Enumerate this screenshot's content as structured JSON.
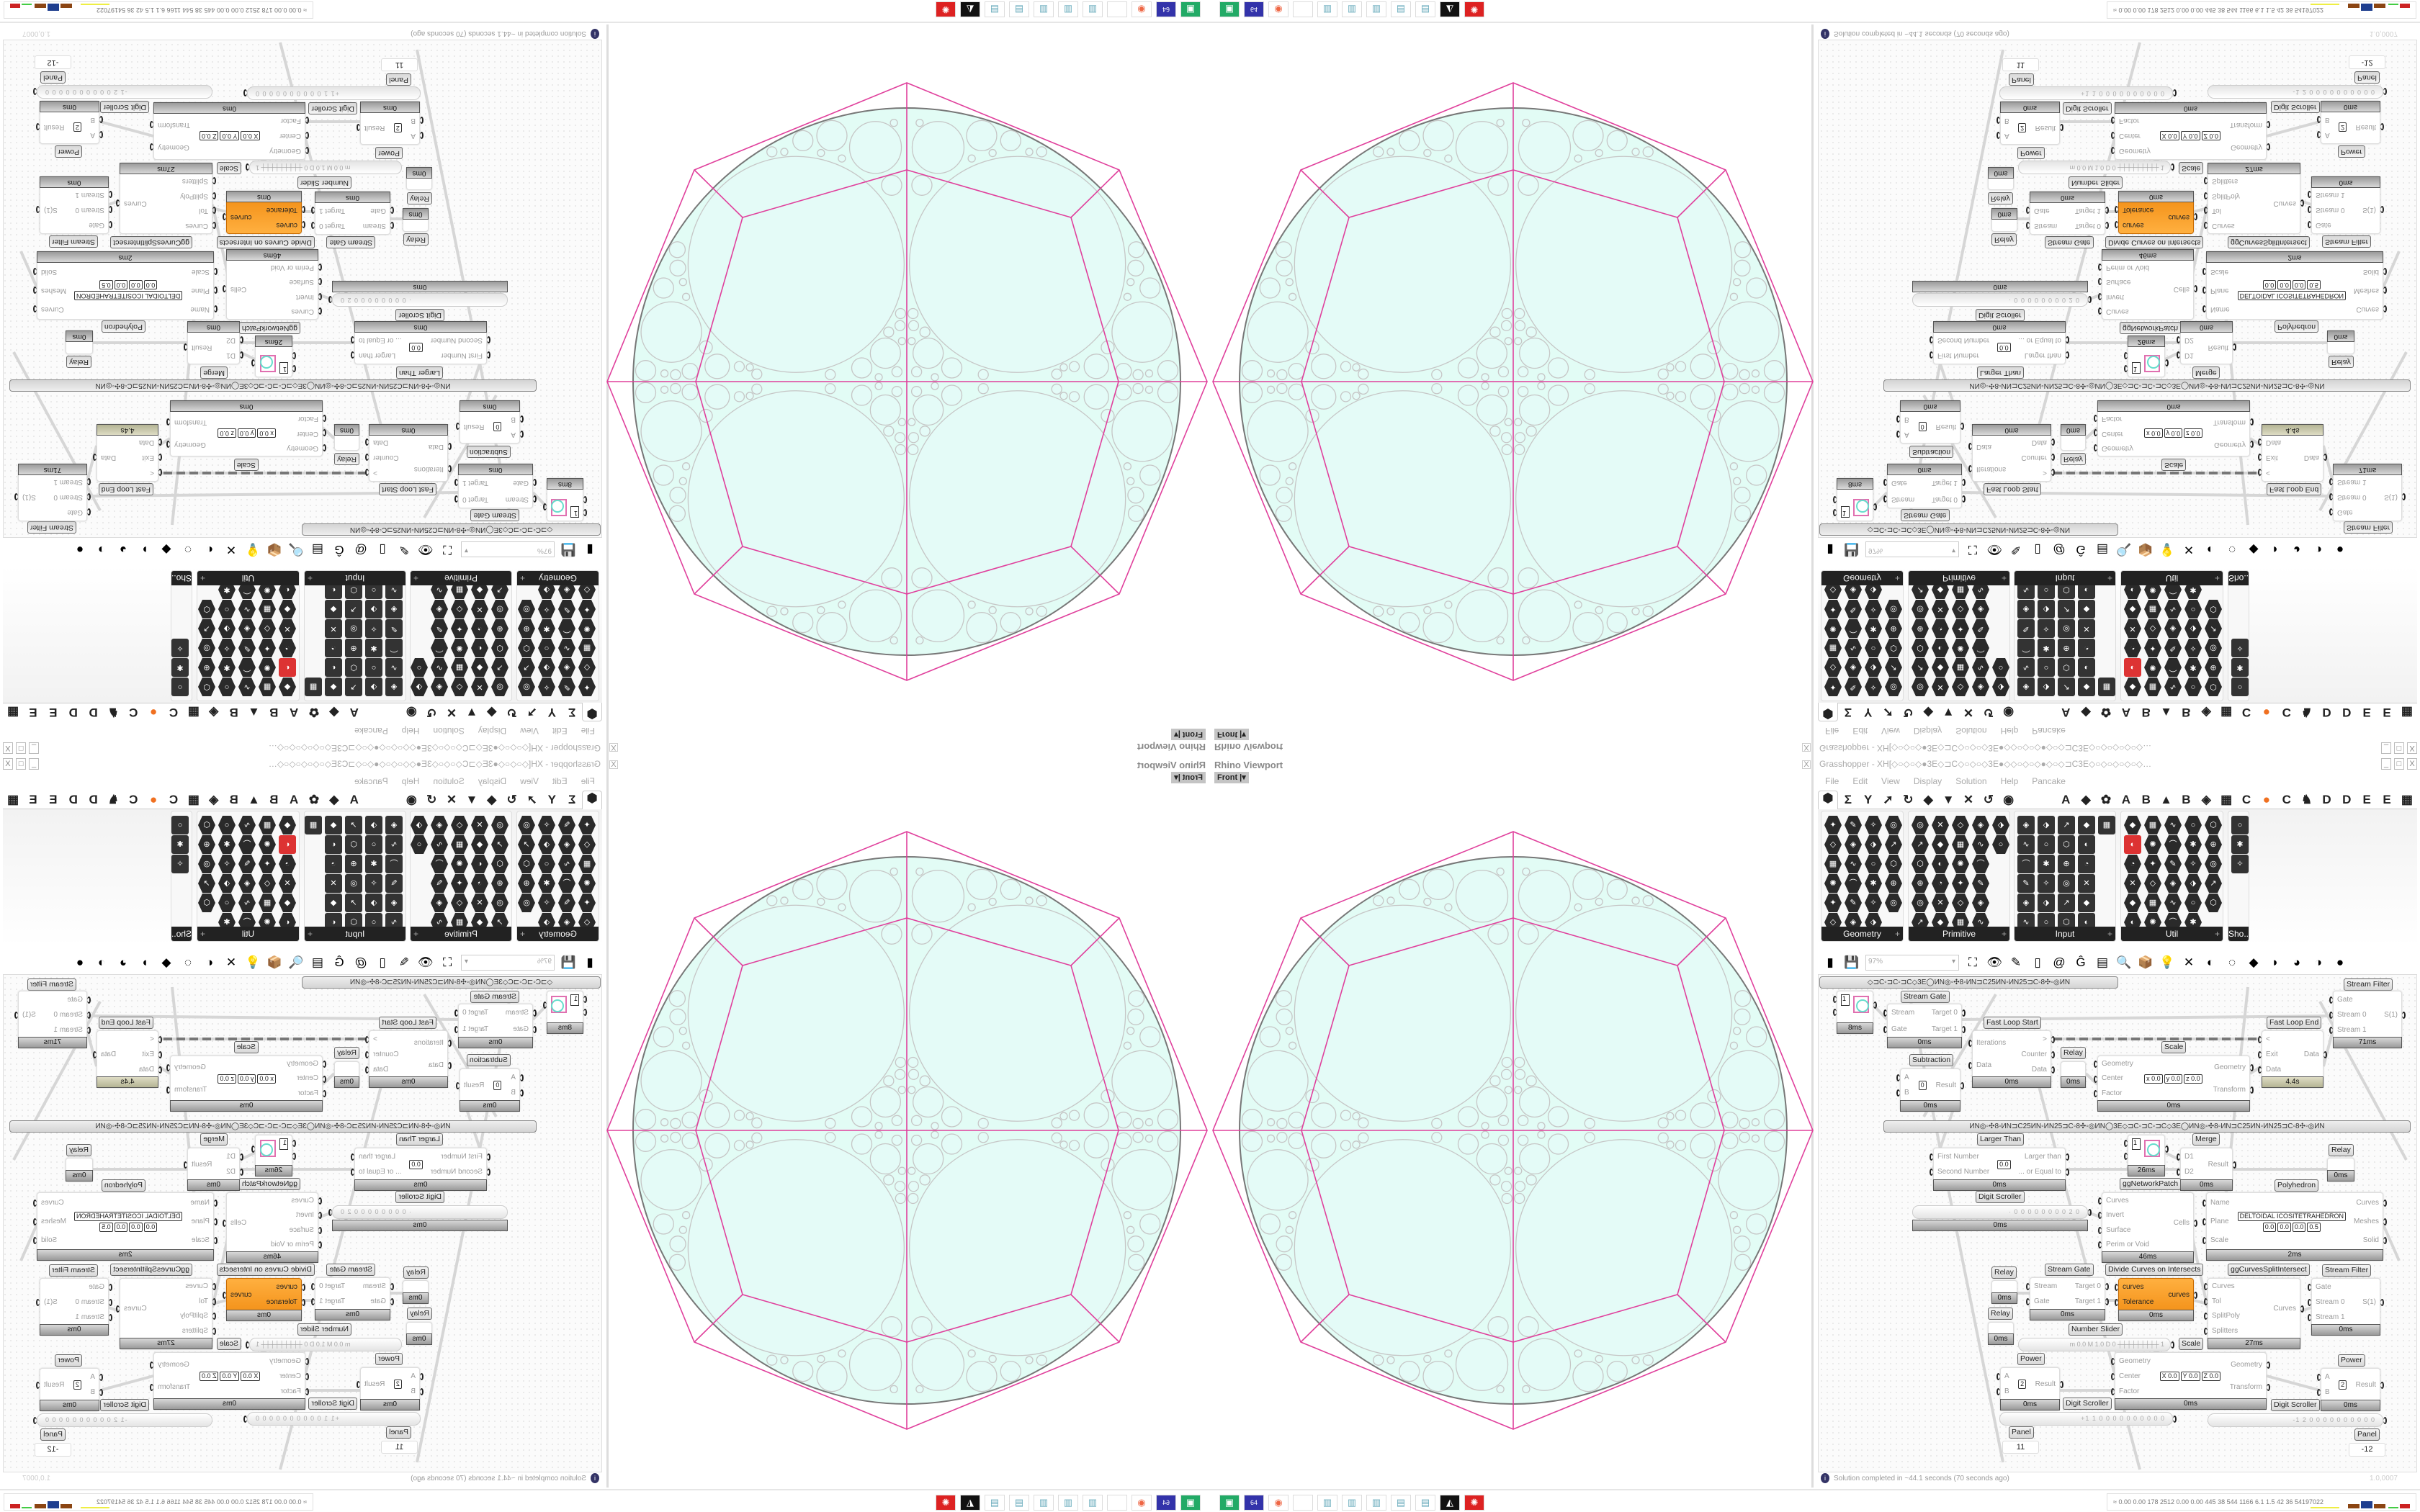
{
  "viewport": {
    "title": "Rhino Viewport",
    "view_button": "Front",
    "close": "X"
  },
  "grasshopper": {
    "title": "Grasshopper - XH[◇○◇○◇●3E◇⊐C◇○◇○◇3E●◇◇○◇○◇●◇○◇⊐C3E◇○◇○◇○◇○◇…",
    "window_buttons": [
      "_",
      "□",
      "X"
    ],
    "menu": [
      "File",
      "Edit",
      "View",
      "Display",
      "Solution",
      "Help",
      "Pancake"
    ],
    "tabs": [
      "⬢",
      "Σ",
      "Y",
      "➚",
      "↻",
      "◆",
      "▼",
      "✕",
      "↺",
      "◉",
      "A",
      "◆",
      "✿",
      "A",
      "B",
      "▲",
      "B",
      "◈",
      "▦",
      "C",
      "●",
      "C",
      "♞",
      "D",
      "D",
      "E",
      "E",
      "▦"
    ],
    "panels": [
      {
        "name": "Geometry"
      },
      {
        "name": "Primitive"
      },
      {
        "name": "Input"
      },
      {
        "name": "Util"
      },
      {
        "name": "Sho..."
      }
    ],
    "panel_plus": "+",
    "toolbar": {
      "icons": [
        "new-file-icon",
        "save-icon",
        "zoom-extents-icon",
        "preview-eye-icon",
        "sketch-brush-icon",
        "cluster-icon",
        "at-icon",
        "gha-icon",
        "document-icon",
        "search-icon",
        "package-icon",
        "bulb-icon",
        "wires-icon",
        "shaded-icon",
        "wireframe-icon",
        "red-cube-icon",
        "teal-sheet-icon",
        "green-icon",
        "half-sphere-icon",
        "sphere-icon"
      ],
      "glyphs": [
        "▮",
        "💾",
        "⛶",
        "👁",
        "✎",
        "▯",
        "@",
        "Ĝ",
        "▤",
        "🔍",
        "📦",
        "💡",
        "✕",
        "◐",
        "◌",
        "◆",
        "◗",
        "◕",
        "◑",
        "●"
      ],
      "zoom_value": "97%"
    },
    "canvas": {
      "groups": {
        "top": "◇⊐C◦⊐C◦⊐C◇3E◯ИN◎◦✣8◦ИN⊐C25ИN◦ИN25⊐C◦8✣◦◎ИN",
        "middle": "ИN◎◦✣8◦ИN⊐C25ИN◦ИN25⊐C◦8✣◦◎ИN◯3E◇⊐C◦⊐C◦⊐C◇3E◯ИN◎◦✣8◦ИN⊐C25ИN◦ИN25⊐C◦8✣◦◎ИN"
      },
      "nodes": {
        "circle1": {
          "value": "1",
          "time": "8ms"
        },
        "streamGate1": {
          "title": "Stream Gate",
          "inputs": [
            "Stream",
            "Gate"
          ],
          "outputs": [
            "Target 0",
            "Target 1"
          ],
          "time": "0ms"
        },
        "fastLoopStart": {
          "title": "Fast Loop Start",
          "inputs": [
            "Iterations",
            "Data"
          ],
          "outputs": [
            ">",
            "Counter",
            "Data"
          ],
          "time": "0ms"
        },
        "relay1": {
          "title": "Relay",
          "time": "0ms"
        },
        "scale1": {
          "title": "Scale",
          "inputs": [
            "Geometry",
            "Center",
            "Factor"
          ],
          "outputs": [
            "Geometry",
            "Transform"
          ],
          "params": [
            "x 0.0",
            "y 0.0",
            "z 0.0"
          ],
          "time": "0ms"
        },
        "fastLoopEnd": {
          "title": "Fast Loop End",
          "inputs": [
            "<",
            "Exit",
            "Data"
          ],
          "outputs": [
            "Data"
          ],
          "time": "4.4s"
        },
        "streamFilter1": {
          "title": "Stream Filter",
          "inputs": [
            "Gate",
            "Stream 0",
            "Stream 1"
          ],
          "outputs": [
            "S(1)"
          ],
          "time": "71ms"
        },
        "subtraction": {
          "title": "Subtraction",
          "inputs": [
            "A",
            "B"
          ],
          "outputs": [
            "Result"
          ],
          "params": [
            "0"
          ],
          "time": "0ms"
        },
        "largerThan": {
          "title": "Larger Than",
          "inputs": [
            "First Number",
            "Second Number"
          ],
          "outputs": [
            "Larger than",
            "... or Equal to"
          ],
          "params": [
            "0.0"
          ],
          "time": "0ms"
        },
        "circle2": {
          "value": "1",
          "time": "26ms"
        },
        "merge": {
          "title": "Merge",
          "inputs": [
            "D1",
            "D2"
          ],
          "outputs": [
            "Result"
          ],
          "time": "0ms"
        },
        "relay2": {
          "title": "Relay",
          "time": "0ms"
        },
        "ggNetworkPatch": {
          "title": "ggNetworkPatch",
          "inputs": [
            "Curves",
            "Invert",
            "Surface",
            "Perim or Void"
          ],
          "outputs": [
            "Cells"
          ],
          "time": "46ms"
        },
        "polyhedron": {
          "title": "Polyhedron",
          "inputs": [
            "Name",
            "Plane",
            "Scale"
          ],
          "outputs": [
            "Curves",
            "Meshes",
            "Solid"
          ],
          "params": [
            "DELTOIDAL ICOSITETRAHEDRON",
            "0.0",
            "0.0",
            "0.0",
            "0.5"
          ],
          "time": "2ms"
        },
        "digitScroller1": {
          "title": "Digit Scroller",
          "value": "· 0 0 0 0 0 0 0 0 2 0",
          "time": "0ms"
        },
        "relay3": {
          "title": "Relay",
          "time": "0ms"
        },
        "relay4": {
          "title": "Relay",
          "time": "0ms"
        },
        "streamGate2": {
          "title": "Stream Gate",
          "inputs": [
            "Stream",
            "Gate"
          ],
          "outputs": [
            "Target 0",
            "Target 1"
          ],
          "time": "0ms"
        },
        "divideCurves": {
          "title": "Divide Curves on Intersects",
          "inputs": [
            "curves",
            "Tolerance"
          ],
          "outputs": [
            "curves"
          ],
          "time": "0ms"
        },
        "ggCurvesSplit": {
          "title": "ggCurvesSplitIntersect",
          "inputs": [
            "Curves",
            "Tol",
            "SplitPoly",
            "Splitters"
          ],
          "outputs": [
            "Curves"
          ],
          "time": "27ms"
        },
        "streamFilter2": {
          "title": "Stream Filter",
          "inputs": [
            "Gate",
            "Stream 0",
            "Stream 1"
          ],
          "outputs": [
            "S(1)"
          ],
          "time": "0ms"
        },
        "numberSlider": {
          "title": "Number Slider",
          "value": "m 0.0  M 1.0  D 0  ┼┼┼┼┼┼┼┼┼ 1"
        },
        "scale2": {
          "title": "Scale",
          "inputs": [
            "Geometry",
            "Center",
            "Factor"
          ],
          "outputs": [
            "Geometry",
            "Transform"
          ],
          "params": [
            "X 0.0",
            "Y 0.0",
            "Z 0.0"
          ],
          "time": "0ms"
        },
        "power1": {
          "title": "Power",
          "inputs": [
            "A",
            "B"
          ],
          "outputs": [
            "Result"
          ],
          "params": [
            "2"
          ],
          "time": "0ms"
        },
        "power2": {
          "title": "Power",
          "inputs": [
            "A",
            "B"
          ],
          "outputs": [
            "Result"
          ],
          "params": [
            "2"
          ],
          "time": "0ms"
        },
        "digitScroller2": {
          "title": "Digit Scroller",
          "value": "+1 1 0 0 0 0 0 0 0 0 0 0"
        },
        "digitScroller3": {
          "title": "Digit Scroller",
          "value": "-1 2 0 0 0 0 0 0 0 0 0 0"
        },
        "panel1": {
          "title": "Panel",
          "value": "11"
        },
        "panel2": {
          "title": "Panel",
          "value": "-12"
        }
      }
    },
    "status": {
      "message": "Solution completed in ~44.1 seconds (70 seconds ago)",
      "coords": "1.0,0007"
    }
  },
  "taskbar": {
    "apps": [
      {
        "icon": "green-app-icon",
        "glyph": "▣"
      },
      {
        "icon": "floppy-64-icon",
        "glyph": "64"
      },
      {
        "icon": "firefox-icon",
        "glyph": "◉"
      },
      {
        "icon": "blank-app-icon",
        "glyph": ""
      },
      {
        "icon": "calculator-icon",
        "glyph": "▥"
      },
      {
        "icon": "calculator-icon",
        "glyph": "▥"
      },
      {
        "icon": "calculator-icon",
        "glyph": "▥"
      },
      {
        "icon": "notepad-icon",
        "glyph": "▤"
      },
      {
        "icon": "notepad-icon",
        "glyph": "▤"
      },
      {
        "icon": "inkscape-icon",
        "glyph": "◭"
      },
      {
        "icon": "red-app-icon",
        "glyph": "✺"
      }
    ],
    "readout": "≈ 0.00 0.00  178  2512 0.00 0.00  445  38  544  1166  6.1  1.5  42  36  54197022"
  },
  "colors": {
    "accent_pink": "#e0409c",
    "mesh_fill": "#e2fcf5",
    "circle_stroke": "#c6c6c6",
    "orange_node": "#f5961e"
  }
}
